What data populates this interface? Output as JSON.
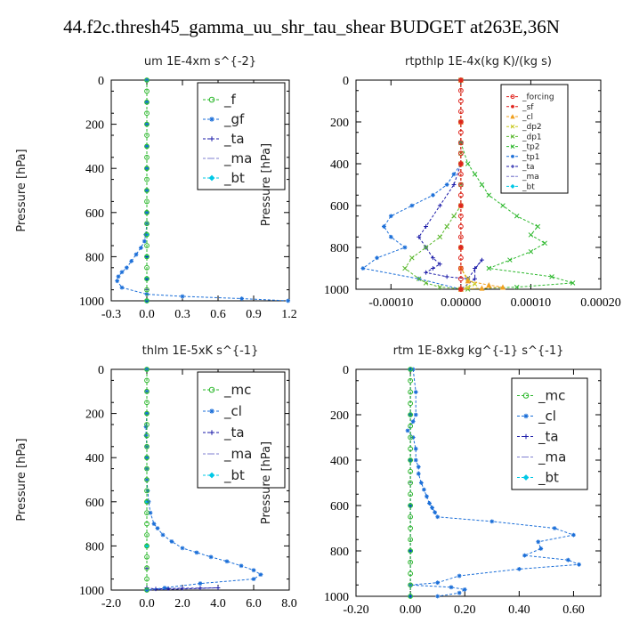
{
  "title": "44.f2c.thresh45_gamma_uu_shr_tau_shear  BUDGET at263E,36N",
  "chart_data": [
    {
      "type": "line",
      "title": "um   1E-4xm s^{-2}",
      "ylabel": "Pressure [hPa]",
      "xlim": [
        -0.3,
        1.2
      ],
      "ylim": [
        1000,
        0
      ],
      "xticks": [
        "-0.3",
        "0.0",
        "0.3",
        "0.6",
        "0.9",
        "1.2"
      ],
      "xtick_values": [
        -0.3,
        0.0,
        0.3,
        0.6,
        0.9,
        1.2
      ],
      "yticks": [
        0,
        200,
        400,
        600,
        800,
        1000
      ],
      "legend_location": "upper-right",
      "series": [
        {
          "name": "_f",
          "color": "#2db82d",
          "marker": "o",
          "x": [
            0,
            0,
            0,
            0,
            0,
            0,
            0,
            0,
            0,
            0,
            0,
            0,
            0,
            0,
            0,
            0,
            0,
            0,
            0,
            0,
            0
          ],
          "y": [
            0,
            50,
            100,
            150,
            200,
            250,
            300,
            350,
            400,
            450,
            500,
            550,
            600,
            650,
            700,
            750,
            800,
            850,
            900,
            950,
            1000
          ]
        },
        {
          "name": "_gf",
          "color": "#1a6ed8",
          "marker": "*",
          "x": [
            0,
            0,
            0,
            0,
            0,
            0,
            0,
            0,
            -0.01,
            -0.02,
            -0.05,
            -0.09,
            -0.13,
            -0.17,
            -0.21,
            -0.24,
            -0.25,
            -0.21,
            0,
            0.3,
            0.8,
            1.19
          ],
          "y": [
            0,
            100,
            200,
            300,
            400,
            500,
            600,
            650,
            700,
            730,
            760,
            790,
            820,
            850,
            870,
            890,
            910,
            940,
            970,
            980,
            990,
            1000
          ]
        },
        {
          "name": "_ta",
          "color": "#1a1aa8",
          "marker": "+",
          "x": [
            0,
            0,
            0,
            0,
            0,
            0,
            0,
            0
          ],
          "y": [
            0,
            200,
            400,
            600,
            800,
            900,
            950,
            1000
          ]
        },
        {
          "name": "_ma",
          "color": "#7f7fd0",
          "marker": "-",
          "x": [
            0,
            0,
            0
          ],
          "y": [
            0,
            500,
            1000
          ]
        },
        {
          "name": "_bt",
          "color": "#00c8e6",
          "marker": "D",
          "x": [
            0,
            0,
            0,
            0,
            0,
            0,
            0,
            0,
            0,
            0,
            0
          ],
          "y": [
            0,
            100,
            200,
            300,
            400,
            500,
            600,
            700,
            800,
            900,
            1000
          ]
        }
      ]
    },
    {
      "type": "line",
      "title": "rtpthlp   1E-4x(kg K)/(kg s)",
      "ylabel": "Pressure [hPa]",
      "xlim": [
        -0.00015,
        0.0002
      ],
      "ylim": [
        1000,
        0
      ],
      "xticks": [
        "-0.00010",
        "0.00000",
        "0.00010",
        "0.00020"
      ],
      "xtick_values": [
        -0.0001,
        0.0,
        0.0001,
        0.0002
      ],
      "yticks": [
        0,
        200,
        400,
        600,
        800,
        1000
      ],
      "legend_location": "upper-right",
      "series": [
        {
          "name": "_forcing",
          "color": "#e0201a",
          "marker": "o",
          "x": [
            0,
            0,
            0,
            0,
            0,
            0,
            0,
            0,
            0,
            0,
            0,
            0,
            0,
            0,
            0,
            0,
            0,
            0,
            0,
            0,
            0
          ],
          "y": [
            0,
            50,
            100,
            150,
            200,
            250,
            300,
            350,
            400,
            450,
            500,
            550,
            600,
            650,
            700,
            750,
            800,
            850,
            900,
            950,
            1000
          ]
        },
        {
          "name": "_sf",
          "color": "#e0201a",
          "marker": "*",
          "x": [
            0,
            0,
            0,
            0,
            0,
            0
          ],
          "y": [
            0,
            200,
            400,
            600,
            800,
            1000
          ]
        },
        {
          "name": "_cl",
          "color": "#f0a020",
          "marker": "^",
          "x": [
            0,
            0,
            0,
            0,
            0,
            0,
            1e-05,
            4e-05,
            6e-05,
            3e-05,
            0
          ],
          "y": [
            0,
            200,
            400,
            600,
            800,
            900,
            960,
            980,
            990,
            995,
            1000
          ]
        },
        {
          "name": "_dp2",
          "color": "#c8c81e",
          "marker": "x",
          "x": [
            0,
            0,
            0,
            0,
            0,
            0,
            1e-05,
            2e-05,
            1e-05,
            0
          ],
          "y": [
            0,
            200,
            400,
            600,
            800,
            900,
            950,
            975,
            990,
            1000
          ]
        },
        {
          "name": "_dp1",
          "color": "#5ab82d",
          "marker": "x",
          "x": [
            0,
            0,
            0,
            0,
            0,
            0,
            -1e-05,
            -2e-05,
            -3e-05,
            -5e-05,
            -7e-05,
            -8e-05,
            -6e-05,
            -5e-05,
            -3e-05,
            1e-05
          ],
          "y": [
            0,
            200,
            350,
            400,
            500,
            600,
            650,
            700,
            750,
            800,
            850,
            900,
            950,
            970,
            990,
            1000
          ]
        },
        {
          "name": "_tp2",
          "color": "#2db82d",
          "marker": "x",
          "x": [
            0,
            0,
            1e-05,
            2e-05,
            3e-05,
            4e-05,
            6e-05,
            8e-05,
            0.00011,
            0.0001,
            0.00012,
            0.0001,
            7e-05,
            4e-05,
            0.00013,
            0.00016,
            8e-05,
            0
          ],
          "y": [
            0,
            300,
            400,
            450,
            500,
            550,
            600,
            650,
            700,
            740,
            780,
            820,
            860,
            900,
            940,
            970,
            990,
            1000
          ]
        },
        {
          "name": "_tp1",
          "color": "#1a6ed8",
          "marker": "*",
          "x": [
            0,
            0,
            0,
            -1e-05,
            -2e-05,
            -4e-05,
            -7e-05,
            -0.0001,
            -0.00011,
            -0.0001,
            -8e-05,
            -0.00012,
            -0.00014,
            -6e-05,
            0
          ],
          "y": [
            0,
            300,
            400,
            450,
            500,
            550,
            600,
            650,
            700,
            750,
            800,
            850,
            900,
            950,
            1000
          ]
        },
        {
          "name": "_ta",
          "color": "#1a1aa8",
          "marker": "+",
          "x": [
            0,
            0,
            0,
            -1e-05,
            -3e-05,
            -5e-05,
            -6e-05,
            -5e-05,
            -4e-05,
            -3e-05,
            -4e-05,
            -5e-05,
            -2e-05,
            1e-05,
            3e-05,
            2e-05,
            2e-05,
            0
          ],
          "y": [
            0,
            200,
            400,
            500,
            600,
            700,
            750,
            800,
            850,
            880,
            900,
            920,
            940,
            950,
            860,
            900,
            950,
            1000
          ]
        },
        {
          "name": "_ma",
          "color": "#7f7fd0",
          "marker": "-",
          "x": [
            0,
            0,
            0
          ],
          "y": [
            0,
            500,
            1000
          ]
        },
        {
          "name": "_bt",
          "color": "#00c8e6",
          "marker": "D",
          "x": [
            0,
            0,
            0,
            0,
            0,
            0
          ],
          "y": [
            0,
            200,
            400,
            600,
            800,
            1000
          ]
        }
      ]
    },
    {
      "type": "line",
      "title": "thlm   1E-5xK s^{-1}",
      "ylabel": "Pressure [hPa]",
      "xlim": [
        -2.0,
        8.0
      ],
      "ylim": [
        1000,
        0
      ],
      "xticks": [
        "-2.0",
        "0.0",
        "2.0",
        "4.0",
        "6.0",
        "8.0"
      ],
      "xtick_values": [
        -2.0,
        0.0,
        2.0,
        4.0,
        6.0,
        8.0
      ],
      "yticks": [
        0,
        200,
        400,
        600,
        800,
        1000
      ],
      "legend_location": "upper-right",
      "series": [
        {
          "name": "_mc",
          "color": "#2db82d",
          "marker": "o",
          "x": [
            0,
            0,
            0,
            0,
            0,
            0,
            0,
            0,
            0,
            0,
            0,
            0,
            0,
            0,
            0,
            0,
            0,
            0,
            0,
            0,
            0
          ],
          "y": [
            0,
            50,
            100,
            150,
            200,
            250,
            300,
            350,
            400,
            450,
            500,
            550,
            600,
            650,
            700,
            750,
            800,
            850,
            900,
            950,
            1000
          ]
        },
        {
          "name": "_cl",
          "color": "#1a6ed8",
          "marker": "*",
          "x": [
            0,
            0,
            0,
            -0.05,
            -0.05,
            0,
            0,
            0,
            0,
            0.05,
            0.1,
            0.2,
            0.4,
            0.6,
            0.9,
            1.4,
            2.0,
            2.8,
            3.6,
            4.5,
            5.3,
            6.0,
            6.4,
            6.0,
            3.0,
            1.0,
            0
          ],
          "y": [
            0,
            100,
            200,
            260,
            300,
            350,
            400,
            450,
            500,
            550,
            600,
            650,
            700,
            720,
            750,
            780,
            810,
            830,
            850,
            870,
            890,
            910,
            930,
            950,
            970,
            990,
            1000
          ]
        },
        {
          "name": "_ta",
          "color": "#1a1aa8",
          "marker": "+",
          "x": [
            0,
            0,
            0,
            0,
            0.5,
            1.2,
            2.0,
            3.0,
            4.0,
            0
          ],
          "y": [
            0,
            500,
            900,
            990,
            995,
            993,
            992,
            991,
            990,
            1000
          ]
        },
        {
          "name": "_ma",
          "color": "#7f7fd0",
          "marker": "-",
          "x": [
            0,
            0,
            0
          ],
          "y": [
            0,
            500,
            1000
          ]
        },
        {
          "name": "_bt",
          "color": "#00c8e6",
          "marker": "D",
          "x": [
            0,
            0,
            0,
            0,
            0,
            0
          ],
          "y": [
            0,
            200,
            400,
            600,
            800,
            1000
          ]
        }
      ]
    },
    {
      "type": "line",
      "title": "rtm   1E-8xkg kg^{-1} s^{-1}",
      "ylabel": "Pressure [hPa]",
      "xlim": [
        -0.2,
        0.7
      ],
      "ylim": [
        1000,
        0
      ],
      "xticks": [
        "-0.20",
        "0.00",
        "0.20",
        "0.40",
        "0.60"
      ],
      "xtick_values": [
        -0.2,
        0.0,
        0.2,
        0.4,
        0.6
      ],
      "yticks": [
        0,
        200,
        400,
        600,
        800,
        1000
      ],
      "legend_location": "upper-right",
      "series": [
        {
          "name": "_mc",
          "color": "#2db82d",
          "marker": "o",
          "x": [
            0,
            0,
            0,
            0,
            0,
            0,
            0,
            0,
            0,
            0,
            0,
            0,
            0,
            0,
            0,
            0,
            0,
            0,
            0,
            0,
            0
          ],
          "y": [
            0,
            50,
            100,
            150,
            200,
            250,
            300,
            350,
            400,
            450,
            500,
            550,
            600,
            650,
            700,
            750,
            800,
            850,
            900,
            950,
            1000
          ]
        },
        {
          "name": "_cl",
          "color": "#1a6ed8",
          "marker": "*",
          "x": [
            0.01,
            0.02,
            0.02,
            0.01,
            -0.01,
            0.01,
            0.02,
            0.02,
            0.03,
            0.03,
            0.04,
            0.05,
            0.06,
            0.07,
            0.08,
            0.09,
            0.1,
            0.3,
            0.53,
            0.6,
            0.47,
            0.48,
            0.42,
            0.58,
            0.62,
            0.4,
            0.18,
            0.1,
            0.0,
            0.15,
            0.2,
            0.18,
            0.1
          ],
          "y": [
            0,
            100,
            200,
            230,
            270,
            300,
            350,
            400,
            430,
            460,
            500,
            530,
            560,
            590,
            610,
            630,
            650,
            670,
            700,
            730,
            760,
            790,
            820,
            840,
            860,
            880,
            910,
            940,
            950,
            960,
            970,
            985,
            1000
          ]
        },
        {
          "name": "_ta",
          "color": "#1a1aa8",
          "marker": "+",
          "x": [
            0,
            0,
            0,
            0,
            0,
            0
          ],
          "y": [
            0,
            200,
            400,
            600,
            800,
            1000
          ]
        },
        {
          "name": "_ma",
          "color": "#7f7fd0",
          "marker": "-",
          "x": [
            0,
            0,
            0
          ],
          "y": [
            0,
            500,
            1000
          ]
        },
        {
          "name": "_bt",
          "color": "#00c8e6",
          "marker": "D",
          "x": [
            0,
            0,
            0,
            0,
            0,
            0
          ],
          "y": [
            0,
            200,
            400,
            600,
            800,
            1000
          ]
        }
      ]
    }
  ]
}
